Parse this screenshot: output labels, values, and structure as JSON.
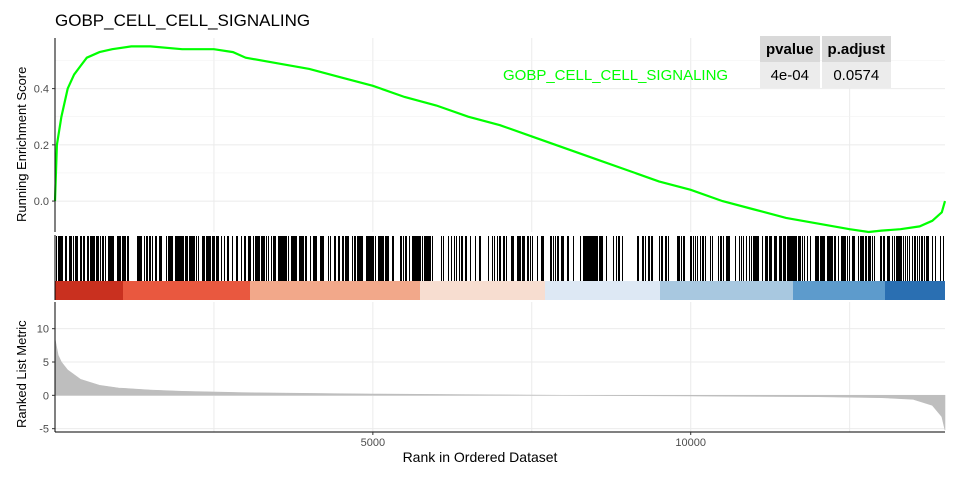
{
  "title": "GOBP_CELL_CELL_SIGNALING",
  "axis": {
    "ylabel_top": "Running Enrichment Score",
    "ylabel_bottom": "Ranked List Metric",
    "xlabel": "Rank in Ordered Dataset"
  },
  "stats_table": {
    "headers": [
      "pvalue",
      "p.adjust"
    ],
    "row_label": "GOBP_CELL_CELL_SIGNALING",
    "values": [
      "4e-04",
      "0.0574"
    ]
  },
  "colors": {
    "curve": "#00ff00",
    "metric_fill": "#bebebe",
    "hit": "#000000",
    "red": "#c9201e",
    "blue": "#2166ac"
  },
  "chart_data": {
    "type": "line",
    "title": "GOBP_CELL_CELL_SIGNALING",
    "xlabel": "Rank in Ordered Dataset",
    "xlim": [
      0,
      14000
    ],
    "x_ticks": [
      5000,
      10000
    ],
    "panels": {
      "running_enrichment": {
        "ylabel": "Running Enrichment Score",
        "ylim": [
          -0.11,
          0.58
        ],
        "y_ticks": [
          0.0,
          0.2,
          0.4
        ],
        "series": [
          {
            "x": [
              0,
              30,
              100,
              200,
              300,
              400,
              500,
              700,
              900,
              1200,
              1500,
              2000,
              2500,
              2800,
              3000,
              3500,
              4000,
              4500,
              5000,
              5500,
              6000,
              6500,
              7000,
              7500,
              8000,
              8500,
              9000,
              9500,
              10000,
              10500,
              11000,
              11500,
              12000,
              12500,
              12800,
              13000,
              13300,
              13600,
              13800,
              13950,
              14000
            ],
            "y": [
              0.0,
              0.2,
              0.3,
              0.4,
              0.45,
              0.48,
              0.51,
              0.53,
              0.54,
              0.55,
              0.55,
              0.54,
              0.54,
              0.53,
              0.51,
              0.49,
              0.47,
              0.44,
              0.41,
              0.37,
              0.34,
              0.3,
              0.27,
              0.23,
              0.19,
              0.15,
              0.11,
              0.07,
              0.04,
              0.0,
              -0.03,
              -0.06,
              -0.08,
              -0.1,
              -0.11,
              -0.105,
              -0.1,
              -0.09,
              -0.07,
              -0.04,
              0.0
            ]
          }
        ]
      },
      "ranked_list_metric": {
        "ylabel": "Ranked List Metric",
        "ylim": [
          -5.5,
          14
        ],
        "y_ticks": [
          -5,
          0,
          5,
          10
        ],
        "x": [
          0,
          50,
          100,
          200,
          400,
          700,
          1000,
          1500,
          2000,
          3000,
          5000,
          8000,
          10000,
          12000,
          13000,
          13500,
          13800,
          13950,
          14000
        ],
        "values": [
          8.5,
          6,
          5,
          3.8,
          2.4,
          1.5,
          1.1,
          0.8,
          0.6,
          0.4,
          0.2,
          0.0,
          -0.1,
          -0.2,
          -0.35,
          -0.6,
          -1.5,
          -3.2,
          -5.2
        ]
      }
    }
  }
}
